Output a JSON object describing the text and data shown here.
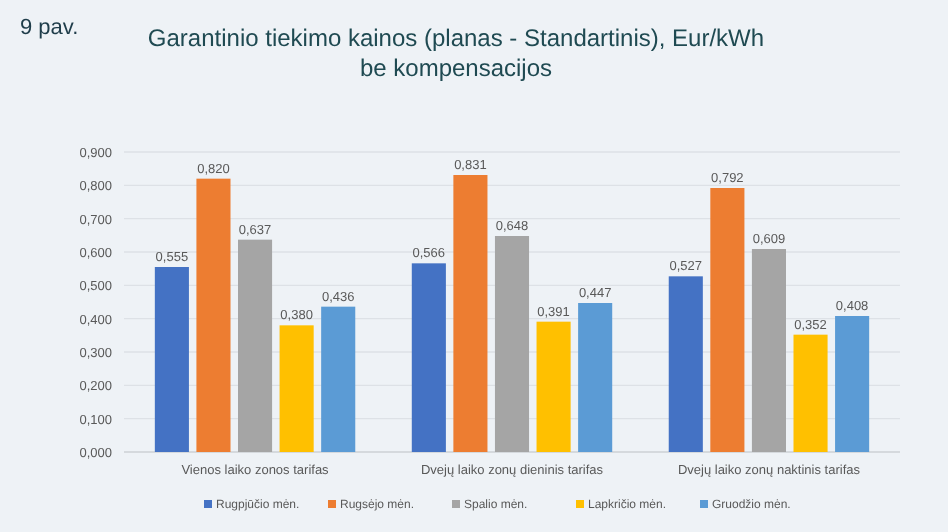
{
  "chart_data": {
    "type": "bar",
    "title": "Garantinio tiekimo kainos (planas - Standartinis), Eur/kWh\nbe kompensacijos",
    "annotations": [
      "9 pav."
    ],
    "categories": [
      "Vienos laiko zonos tarifas",
      "Dvejų laiko zonų dieninis tarifas",
      "Dvejų laiko zonų naktinis tarifas"
    ],
    "series": [
      {
        "name": "Rugpjūčio mėn.",
        "color": "#4472c4",
        "values": [
          0.555,
          0.566,
          0.527
        ],
        "value_labels": [
          "0,555",
          "0,566",
          "0,527"
        ]
      },
      {
        "name": "Rugsėjo mėn.",
        "color": "#ed7d31",
        "values": [
          0.82,
          0.831,
          0.792
        ],
        "value_labels": [
          "0,820",
          "0,831",
          "0,792"
        ]
      },
      {
        "name": "Spalio mėn.",
        "color": "#a5a5a5",
        "values": [
          0.637,
          0.648,
          0.609
        ],
        "value_labels": [
          "0,637",
          "0,648",
          "0,609"
        ]
      },
      {
        "name": "Lapkričio mėn.",
        "color": "#ffc000",
        "values": [
          0.38,
          0.391,
          0.352
        ],
        "value_labels": [
          "0,380",
          "0,391",
          "0,352"
        ]
      },
      {
        "name": "Gruodžio mėn.",
        "color": "#5b9bd5",
        "values": [
          0.436,
          0.447,
          0.408
        ],
        "value_labels": [
          "0,436",
          "0,447",
          "0,408"
        ]
      }
    ],
    "ylim": [
      0,
      0.9
    ],
    "yticks": [
      {
        "value": 0,
        "label": "0,000"
      },
      {
        "value": 0.1,
        "label": "0,100"
      },
      {
        "value": 0.2,
        "label": "0,200"
      },
      {
        "value": 0.3,
        "label": "0,300"
      },
      {
        "value": 0.4,
        "label": "0,400"
      },
      {
        "value": 0.5,
        "label": "0,500"
      },
      {
        "value": 0.6,
        "label": "0,600"
      },
      {
        "value": 0.7,
        "label": "0,700"
      },
      {
        "value": 0.8,
        "label": "0,800"
      },
      {
        "value": 0.9,
        "label": "0,900"
      }
    ],
    "grid": "y",
    "legend": "bottom"
  }
}
